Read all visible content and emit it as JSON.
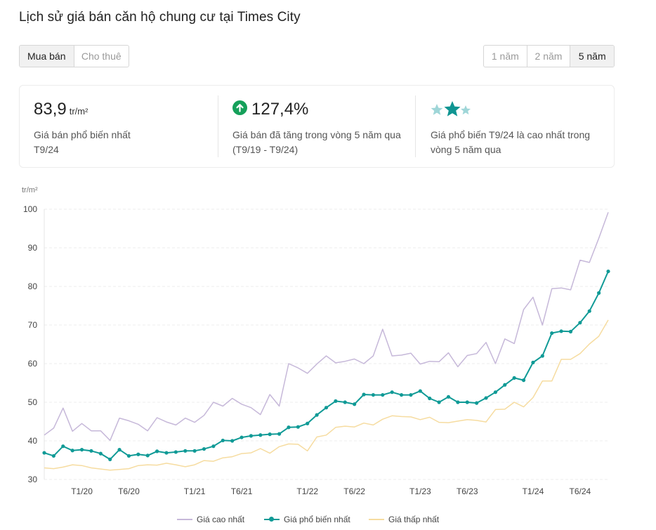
{
  "page_title": "Lịch sử giá bán căn hộ chung cư tại Times City",
  "tabs": {
    "items": [
      {
        "label": "Mua bán",
        "active": true
      },
      {
        "label": "Cho thuê",
        "active": false
      }
    ]
  },
  "ranges": {
    "items": [
      {
        "label": "1 năm",
        "active": false
      },
      {
        "label": "2 năm",
        "active": false
      },
      {
        "label": "5 năm",
        "active": true
      }
    ]
  },
  "stats": {
    "common_price": {
      "value": "83,9",
      "unit": "tr/m²",
      "desc": "Giá bán phổ biến nhất T9/24"
    },
    "growth": {
      "value": "127,4%",
      "icon": "arrow-up-circle-icon",
      "color": "#15a05a",
      "desc": "Giá bán đã tăng trong vòng 5 năm qua (T9/19 - T9/24)"
    },
    "rank": {
      "icon": "stars-icon",
      "desc": "Giá phổ biến T9/24 là cao nhất trong vòng 5 năm qua",
      "color_active": "#0f9592",
      "color_inactive": "#9fd6d8"
    }
  },
  "legend": {
    "max": "Giá cao nhất",
    "common": "Giá phổ biến nhất",
    "min": "Giá thấp nhất"
  },
  "chart_data": {
    "type": "line",
    "unit_label": "tr/m²",
    "ylim": [
      30,
      100
    ],
    "yticks": [
      30,
      40,
      50,
      60,
      70,
      80,
      90,
      100
    ],
    "x_start": "T9/19",
    "x_end": "T9/24",
    "x_tick_labels": [
      {
        "label": "T1/20",
        "index": 4
      },
      {
        "label": "T6/20",
        "index": 9
      },
      {
        "label": "T1/21",
        "index": 16
      },
      {
        "label": "T6/21",
        "index": 21
      },
      {
        "label": "T1/22",
        "index": 28
      },
      {
        "label": "T6/22",
        "index": 33
      },
      {
        "label": "T1/23",
        "index": 40
      },
      {
        "label": "T6/23",
        "index": 45
      },
      {
        "label": "T1/24",
        "index": 52
      },
      {
        "label": "T6/24",
        "index": 57
      }
    ],
    "grid": true,
    "legend_position": "bottom",
    "series": [
      {
        "name": "Giá cao nhất",
        "color": "#c6b8d9",
        "markers": false,
        "values": [
          41.5,
          43.3,
          48.5,
          42.5,
          44.5,
          42.6,
          42.6,
          40.1,
          45.9,
          45.2,
          44.3,
          42.6,
          46.0,
          44.9,
          44.1,
          45.9,
          44.8,
          46.6,
          50.0,
          49.0,
          51.0,
          49.5,
          48.6,
          46.8,
          52.0,
          49.0,
          60.0,
          58.9,
          57.5,
          59.9,
          62.0,
          60.2,
          60.6,
          61.2,
          60.0,
          62.0,
          68.9,
          62.0,
          62.2,
          62.7,
          59.9,
          60.6,
          60.5,
          62.8,
          59.2,
          62.1,
          62.6,
          65.5,
          60.0,
          66.4,
          65.2,
          74.0,
          77.2,
          70.0,
          79.4,
          79.6,
          79.1,
          86.8,
          86.2,
          92.5,
          99.2
        ]
      },
      {
        "name": "Giá phổ biến nhất",
        "color": "#109a96",
        "markers": true,
        "values": [
          36.9,
          36.1,
          38.6,
          37.5,
          37.7,
          37.4,
          36.7,
          35.2,
          37.7,
          36.1,
          36.5,
          36.2,
          37.3,
          36.9,
          37.1,
          37.4,
          37.4,
          37.9,
          38.6,
          40.1,
          40.0,
          40.9,
          41.3,
          41.5,
          41.7,
          41.8,
          43.5,
          43.6,
          44.5,
          46.7,
          48.6,
          50.3,
          50.0,
          49.5,
          52.0,
          51.9,
          51.9,
          52.6,
          51.9,
          51.9,
          52.9,
          51.0,
          50.0,
          51.4,
          50.0,
          50.0,
          49.8,
          51.1,
          52.6,
          54.5,
          56.3,
          55.7,
          60.3,
          62.0,
          67.9,
          68.4,
          68.3,
          70.6,
          73.6,
          78.3,
          83.9
        ]
      },
      {
        "name": "Giá thấp nhất",
        "color": "#f6dca0",
        "markers": false,
        "values": [
          33.0,
          32.8,
          33.2,
          33.8,
          33.6,
          33.0,
          32.7,
          32.4,
          32.6,
          32.8,
          33.6,
          33.8,
          33.7,
          34.2,
          33.8,
          33.3,
          33.8,
          34.9,
          34.7,
          35.6,
          35.9,
          36.7,
          36.9,
          38.0,
          36.8,
          38.5,
          39.2,
          39.1,
          37.4,
          41.0,
          41.5,
          43.5,
          43.8,
          43.6,
          44.6,
          44.1,
          45.6,
          46.5,
          46.3,
          46.2,
          45.5,
          46.1,
          44.8,
          44.7,
          45.1,
          45.5,
          45.3,
          44.9,
          48.1,
          48.2,
          50.0,
          48.8,
          51.2,
          55.5,
          55.5,
          61.1,
          61.1,
          62.6,
          65.1,
          67.1,
          71.3
        ]
      }
    ]
  }
}
